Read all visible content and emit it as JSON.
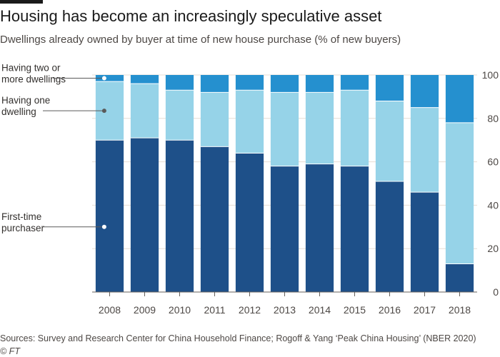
{
  "header": {
    "title": "Housing has become an increasingly speculative asset",
    "subtitle": "Dwellings already owned by buyer at time of new house purchase (% of new buyers)"
  },
  "footer": {
    "source": "Sources: Survey and Research Center for China Household Finance; Rogoff & Yang ‘Peak China Housing’ (NBER 2020)",
    "credit": "© FT"
  },
  "chart_data": {
    "type": "bar",
    "stacked": true,
    "categories": [
      "2008",
      "2009",
      "2010",
      "2011",
      "2012",
      "2013",
      "2014",
      "2015",
      "2016",
      "2017",
      "2018"
    ],
    "series": [
      {
        "name": "First-time purchaser",
        "color": "#1e5089",
        "values": [
          70,
          71,
          70,
          67,
          64,
          58,
          59,
          58,
          51,
          46,
          13
        ]
      },
      {
        "name": "Having one dwelling",
        "color": "#96d3e8",
        "values": [
          27,
          25,
          23,
          25,
          29,
          34,
          33,
          35,
          37,
          39,
          65
        ]
      },
      {
        "name": "Having two or more dwellings",
        "color": "#2590cf",
        "values": [
          3,
          4,
          7,
          8,
          7,
          8,
          8,
          7,
          12,
          15,
          22
        ]
      }
    ],
    "y_ticks": [
      "0",
      "20",
      "40",
      "60",
      "80",
      "100"
    ],
    "ylim": [
      0,
      100
    ],
    "grid": true,
    "legend": "inline-left",
    "annotations": [
      {
        "lines": [
          "Having two or",
          "more dwellings"
        ],
        "series": "Having two or more dwellings",
        "marker_color": "#ffffff"
      },
      {
        "lines": [
          "Having one",
          "dwelling"
        ],
        "series": "Having one dwelling",
        "marker_color": "#5a5a5a"
      },
      {
        "lines": [
          "First-time",
          "purchaser"
        ],
        "series": "First-time purchaser",
        "marker_color": "#ffffff"
      }
    ]
  }
}
